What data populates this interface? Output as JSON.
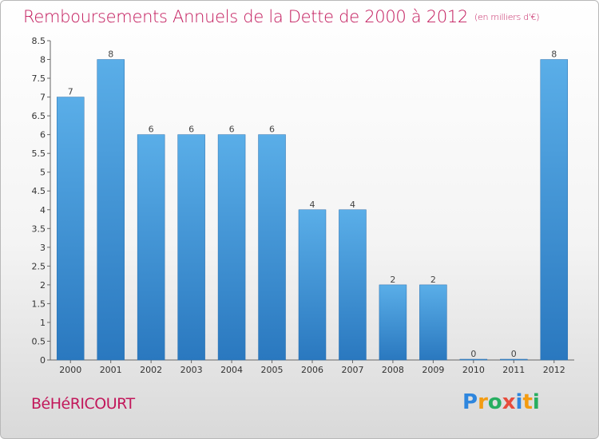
{
  "header": {
    "title": "Remboursements Annuels de la Dette de 2000 à 2012",
    "unit": "(en milliers d'€)"
  },
  "footer": {
    "town": "BéHéRICOURT",
    "logo_letters": [
      {
        "char": "P",
        "color": "#2e86de"
      },
      {
        "char": "r",
        "color": "#f39c12"
      },
      {
        "char": "o",
        "color": "#27ae60"
      },
      {
        "char": "x",
        "color": "#e74c3c"
      },
      {
        "char": "i",
        "color": "#2e86de"
      },
      {
        "char": "t",
        "color": "#f39c12"
      },
      {
        "char": "i",
        "color": "#27ae60"
      }
    ]
  },
  "chart_data": {
    "type": "bar",
    "title": "Remboursements Annuels de la Dette de 2000 à 2012",
    "categories": [
      "2000",
      "2001",
      "2002",
      "2003",
      "2004",
      "2005",
      "2006",
      "2007",
      "2008",
      "2009",
      "2010",
      "2011",
      "2012"
    ],
    "values": [
      7,
      8,
      6,
      6,
      6,
      6,
      4,
      4,
      2,
      2,
      0,
      0,
      8
    ],
    "ylim": [
      0,
      8.5
    ],
    "yticks": [
      "0",
      "0.5",
      "1",
      "1.5",
      "2",
      "2.5",
      "3",
      "3.5",
      "4",
      "4.5",
      "5",
      "5.5",
      "6",
      "6.5",
      "7",
      "7.5",
      "8",
      "8.5"
    ],
    "grid": false,
    "bar_color": "#3a8fd6"
  }
}
